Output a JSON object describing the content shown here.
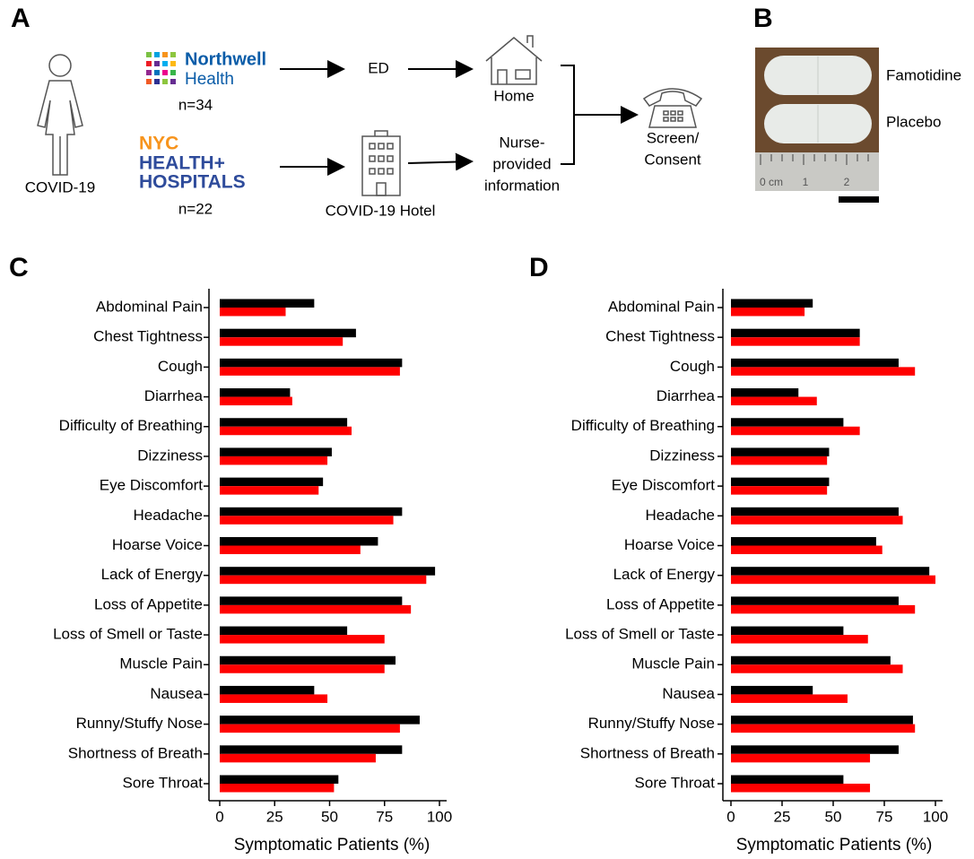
{
  "panel_a": {
    "label": "A",
    "patient": "COVID-19",
    "northwell": [
      "Northwell",
      "Health"
    ],
    "n_northwell": "n=34",
    "nyc": [
      "NYC",
      "HEALTH+",
      "HOSPITALS"
    ],
    "n_nyc": "n=22",
    "ed": "ED",
    "home": "Home",
    "hotel": "COVID-19 Hotel",
    "nurse": [
      "Nurse-",
      "provided",
      "information"
    ],
    "screen": [
      "Screen/",
      "Consent"
    ]
  },
  "panel_b": {
    "label": "B",
    "famotidine": "Famotidine",
    "placebo": "Placebo",
    "ruler": [
      "0 cm",
      "1",
      "2"
    ]
  },
  "chart_data": [
    {
      "type": "bar",
      "orientation": "horizontal",
      "label": "C",
      "x_label": "Symptomatic Patients (%)",
      "categories": [
        "Abdominal Pain",
        "Chest Tightness",
        "Cough",
        "Diarrhea",
        "Difficulty of Breathing",
        "Dizziness",
        "Eye Discomfort",
        "Headache",
        "Hoarse Voice",
        "Lack of Energy",
        "Loss of Appetite",
        "Loss of Smell or Taste",
        "Muscle Pain",
        "Nausea",
        "Runny/Stuffy Nose",
        "Shortness of Breath",
        "Sore Throat"
      ],
      "series": [
        {
          "color": "#000000",
          "values": [
            43,
            62,
            83,
            32,
            58,
            51,
            47,
            83,
            72,
            98,
            83,
            58,
            80,
            43,
            91,
            83,
            54
          ]
        },
        {
          "color": "#ff0000",
          "values": [
            30,
            56,
            82,
            33,
            60,
            49,
            45,
            79,
            64,
            94,
            87,
            75,
            75,
            49,
            82,
            71,
            52
          ]
        }
      ],
      "xlim": [
        0,
        100
      ],
      "xticks": [
        0,
        25,
        50,
        75,
        100
      ]
    },
    {
      "type": "bar",
      "orientation": "horizontal",
      "label": "D",
      "x_label": "Symptomatic Patients (%)",
      "categories": [
        "Abdominal Pain",
        "Chest Tightness",
        "Cough",
        "Diarrhea",
        "Difficulty of Breathing",
        "Dizziness",
        "Eye Discomfort",
        "Headache",
        "Hoarse Voice",
        "Lack of Energy",
        "Loss of Appetite",
        "Loss of Smell or Taste",
        "Muscle Pain",
        "Nausea",
        "Runny/Stuffy Nose",
        "Shortness of Breath",
        "Sore Throat"
      ],
      "series": [
        {
          "color": "#000000",
          "values": [
            40,
            63,
            82,
            33,
            55,
            48,
            48,
            82,
            71,
            97,
            82,
            55,
            78,
            40,
            89,
            82,
            55
          ]
        },
        {
          "color": "#ff0000",
          "values": [
            36,
            63,
            90,
            42,
            63,
            47,
            47,
            84,
            74,
            100,
            90,
            67,
            84,
            57,
            90,
            68,
            68
          ]
        }
      ],
      "xlim": [
        0,
        100
      ],
      "xticks": [
        0,
        25,
        50,
        75,
        100
      ]
    }
  ]
}
